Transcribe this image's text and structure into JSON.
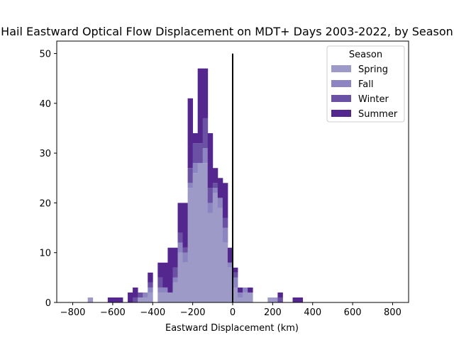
{
  "chart_data": {
    "type": "bar",
    "stacked": true,
    "title": "Hail Eastward Optical Flow Displacement on MDT+ Days 2003-2022, by Season",
    "xlabel": "Eastward Displacement (km)",
    "ylabel": "",
    "xlim": [
      -880,
      880
    ],
    "ylim": [
      0,
      52.5
    ],
    "xticks": [
      -800,
      -600,
      -400,
      -200,
      0,
      200,
      400,
      600,
      800
    ],
    "xtick_labels": [
      "−800",
      "−600",
      "−400",
      "−200",
      "0",
      "200",
      "400",
      "600",
      "800"
    ],
    "yticks": [
      0,
      10,
      20,
      30,
      40,
      50
    ],
    "ytick_labels": [
      "0",
      "10",
      "20",
      "30",
      "40",
      "50"
    ],
    "bin_width": 25,
    "bin_starts": [
      -725,
      -650,
      -625,
      -600,
      -575,
      -550,
      -525,
      -500,
      -475,
      -450,
      -425,
      -400,
      -375,
      -350,
      -325,
      -300,
      -275,
      -250,
      -225,
      -200,
      -175,
      -150,
      -125,
      -100,
      -75,
      -50,
      -25,
      0,
      25,
      50,
      75,
      100,
      125,
      150,
      175,
      200,
      225,
      250,
      275,
      300,
      325,
      350,
      375,
      400,
      425
    ],
    "series": [
      {
        "name": "Spring",
        "color": "#9e9ac8",
        "values": [
          1,
          0,
          0,
          0,
          0,
          0,
          0,
          0,
          1,
          1,
          2,
          0,
          2,
          2,
          2,
          4,
          10,
          8,
          23,
          26,
          28,
          28,
          18,
          22,
          19,
          12,
          7,
          3,
          1,
          2,
          2,
          0,
          0,
          0,
          1,
          1,
          0,
          0,
          0,
          0,
          0,
          0,
          0,
          0,
          0
        ]
      },
      {
        "name": "Fall",
        "color": "#8c85c1",
        "values": [
          0,
          0,
          0,
          0,
          0,
          0,
          0,
          0,
          0,
          1,
          1,
          0,
          1,
          1,
          0,
          1,
          2,
          2,
          1,
          2,
          0,
          3,
          2,
          1,
          2,
          3,
          1,
          2,
          1,
          1,
          0,
          0,
          0,
          0,
          0,
          0,
          0,
          0,
          0,
          0,
          0,
          0,
          0,
          0,
          0
        ]
      },
      {
        "name": "Winter",
        "color": "#6a51a3",
        "values": [
          0,
          0,
          0,
          0,
          0,
          0,
          0,
          1,
          1,
          0,
          1,
          0,
          2,
          0,
          0,
          2,
          2,
          1,
          3,
          4,
          4,
          6,
          3,
          1,
          0,
          2,
          0,
          1,
          0,
          0,
          0,
          0,
          0,
          0,
          0,
          0,
          1,
          0,
          0,
          0,
          0,
          0,
          0,
          0,
          0
        ]
      },
      {
        "name": "Summer",
        "color": "#54278f",
        "values": [
          0,
          0,
          1,
          1,
          1,
          0,
          2,
          2,
          0,
          0,
          2,
          0,
          3,
          5,
          9,
          4,
          6,
          9,
          14,
          2,
          15,
          10,
          11,
          3,
          4,
          7,
          3,
          1,
          1,
          0,
          1,
          0,
          0,
          0,
          0,
          0,
          1,
          0,
          0,
          1,
          1,
          0,
          0,
          0,
          0
        ]
      }
    ],
    "vline_x": 0,
    "vline_ymax": 50,
    "legend": {
      "title": "Season",
      "placement": "top-right",
      "order": [
        "Spring",
        "Fall",
        "Winter",
        "Summer"
      ]
    }
  }
}
